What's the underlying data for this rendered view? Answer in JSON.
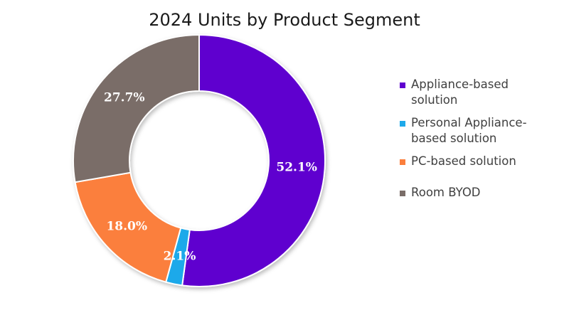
{
  "chart_data": {
    "type": "pie",
    "donut": true,
    "title": "2024 Units by Product Segment",
    "categories": [
      "Appliance-based solution",
      "Personal Appliance-based solution",
      "PC-based solution",
      "Room BYOD"
    ],
    "values": [
      52.1,
      2.1,
      18.0,
      27.7
    ],
    "labels": [
      "52.1%",
      "2.1%",
      "18.0%",
      "27.7%"
    ],
    "colors": [
      "#5f00cf",
      "#1ea9ea",
      "#fb7f3c",
      "#7a6d68"
    ],
    "legend": {
      "position": "right",
      "entries": [
        [
          "Appliance-based",
          "solution"
        ],
        [
          "Personal Appliance-",
          "based solution"
        ],
        [
          "PC-based solution"
        ],
        [
          "Room BYOD"
        ]
      ]
    }
  }
}
